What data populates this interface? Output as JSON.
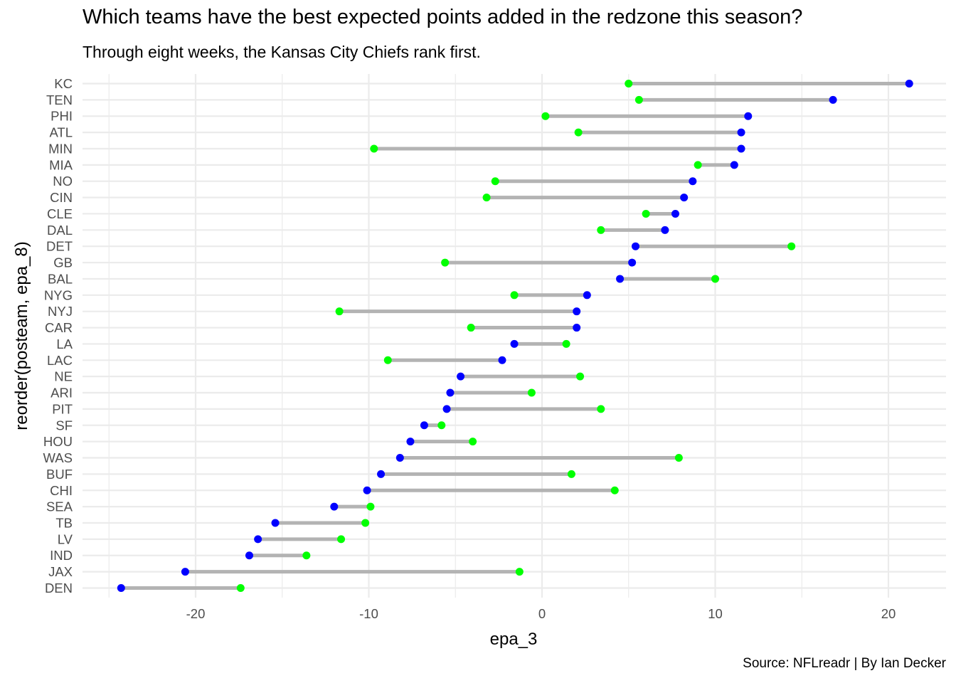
{
  "chart_data": {
    "type": "dumbbell",
    "title": "Which teams have the best expected points added in the redzone this season?",
    "subtitle": "Through eight weeks, the Kansas City Chiefs rank first.",
    "caption": "Source: NFLreadr | By Ian Decker",
    "xlabel": "epa_3",
    "ylabel": "reorder(posteam, epa_8)",
    "xlim": [
      -26.1,
      23.3
    ],
    "xticks": [
      -20,
      -10,
      0,
      10,
      20
    ],
    "grid": true,
    "legend": "none",
    "colors": {
      "epa_8": "#0000ff",
      "epa_3": "#00ff00",
      "segment": "#b3b3b3",
      "grid": "#ebebeb"
    },
    "categories": [
      "KC",
      "TEN",
      "PHI",
      "ATL",
      "MIN",
      "MIA",
      "NO",
      "CIN",
      "CLE",
      "DAL",
      "DET",
      "GB",
      "BAL",
      "NYG",
      "NYJ",
      "CAR",
      "LA",
      "LAC",
      "NE",
      "ARI",
      "PIT",
      "SF",
      "HOU",
      "WAS",
      "BUF",
      "CHI",
      "SEA",
      "TB",
      "LV",
      "IND",
      "JAX",
      "DEN"
    ],
    "epa_8": [
      21.2,
      16.8,
      11.9,
      11.5,
      11.5,
      11.1,
      8.7,
      8.2,
      7.7,
      7.1,
      5.4,
      5.2,
      4.5,
      2.6,
      2.0,
      2.0,
      -1.6,
      -2.3,
      -4.7,
      -5.3,
      -5.5,
      -6.8,
      -7.6,
      -8.2,
      -9.3,
      -10.1,
      -12.0,
      -15.4,
      -16.4,
      -16.9,
      -20.6,
      -24.3
    ],
    "epa_3": [
      5.0,
      5.6,
      0.2,
      2.1,
      -9.7,
      9.0,
      -2.7,
      -3.2,
      6.0,
      3.4,
      14.4,
      -5.6,
      10.0,
      -1.6,
      -11.7,
      -4.1,
      1.4,
      -8.9,
      2.2,
      -0.6,
      3.4,
      -5.8,
      -4.0,
      7.9,
      1.7,
      4.2,
      -9.9,
      -10.2,
      -11.6,
      -13.6,
      -1.3,
      -17.4
    ]
  }
}
